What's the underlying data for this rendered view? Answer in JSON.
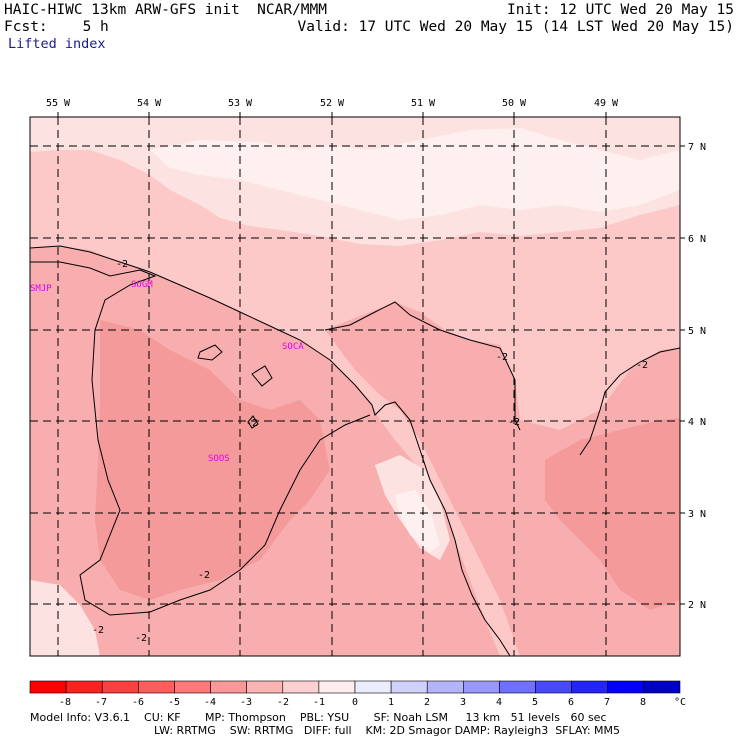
{
  "header": {
    "left1": "HAIC-HIWC 13km ARW-GFS init  NCAR/MMM",
    "left2": "Fcst:    5 h",
    "right1": "Init: 12 UTC Wed 20 May 15",
    "right2": "Valid: 17 UTC Wed 20 May 15 (14 LST Wed 20 May 15)",
    "field": "Lifted index"
  },
  "map": {
    "lon_labels": [
      "55 W",
      "54 W",
      "53 W",
      "52 W",
      "51 W",
      "50 W",
      "49 W"
    ],
    "lat_labels": [
      "7 N",
      "6 N",
      "5 N",
      "4 N",
      "3 N",
      "2 N"
    ],
    "stations": [
      "SMJP",
      "SOGM",
      "SOCA",
      "SOOS"
    ],
    "contour_labels": [
      "-2",
      "-2",
      "-2",
      "-2",
      "-2",
      "-2",
      "-2",
      "-2"
    ],
    "colors": {
      "base": "#fcc8c8",
      "light": "#fde2e2",
      "lightest": "#fff0f0",
      "mid": "#f8aeae",
      "dark": "#f59a9a",
      "station": "#e600e6"
    }
  },
  "colorbar": {
    "tick_labels": [
      "-8",
      "-7",
      "-6",
      "-5",
      "-4",
      "-3",
      "-2",
      "-1",
      "0",
      "1",
      "2",
      "3",
      "4",
      "5",
      "6",
      "7",
      "8"
    ],
    "unit": "°C",
    "colors": [
      "#ff0000",
      "#ff2020",
      "#ff4040",
      "#ff5c5c",
      "#ff7878",
      "#f89898",
      "#fab4b4",
      "#fcd0d0",
      "#ffecec",
      "#ececff",
      "#d0d0fc",
      "#b4b4fa",
      "#9898f8",
      "#7070ff",
      "#4848ff",
      "#2424ff",
      "#0000ff"
    ]
  },
  "footer": {
    "line1": "Model Info: V3.6.1    CU: KF       MP: Thompson    PBL: YSU       SF: Noah LSM     13 km   51 levels   60 sec",
    "line2": "LW: RRTMG    SW: RRTMG   DIFF: full    KM: 2D Smagor DAMP: Rayleigh3  SFLAY: MM5"
  }
}
